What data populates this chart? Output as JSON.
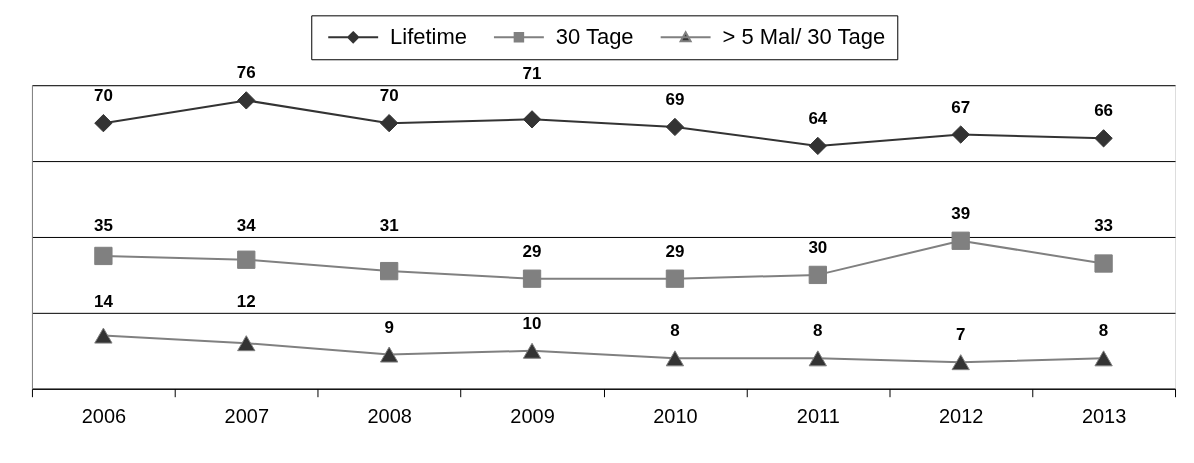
{
  "chart_data": {
    "type": "line",
    "categories": [
      "2006",
      "2007",
      "2008",
      "2009",
      "2010",
      "2011",
      "2012",
      "2013"
    ],
    "series": [
      {
        "name": "Lifetime",
        "color": "#333333",
        "marker": "diamond",
        "values": [
          70,
          76,
          70,
          71,
          69,
          64,
          67,
          66
        ]
      },
      {
        "name": "30 Tage",
        "color": "#808080",
        "marker": "square",
        "values": [
          35,
          34,
          31,
          29,
          29,
          30,
          39,
          33
        ]
      },
      {
        "name": "> 5 Mal/ 30 Tage",
        "color": "#808080",
        "colors": [
          "#333333",
          "#333333",
          "#333333",
          "#333333",
          "#333333",
          "#333333",
          "#333333",
          "#333333"
        ],
        "marker": "triangle",
        "values": [
          14,
          12,
          9,
          10,
          8,
          8,
          7,
          8
        ]
      }
    ],
    "ylim": [
      0,
      80
    ],
    "yticks": [
      {
        "value": 0,
        "label": null
      },
      {
        "value": 20,
        "label": null
      },
      {
        "value": 40,
        "label": null
      },
      {
        "value": 60,
        "label": null
      },
      {
        "value": 80,
        "label": null
      }
    ],
    "grid": "y",
    "legend": "top",
    "tick_labels": "x",
    "data_labels": true,
    "line_style": "solid"
  }
}
